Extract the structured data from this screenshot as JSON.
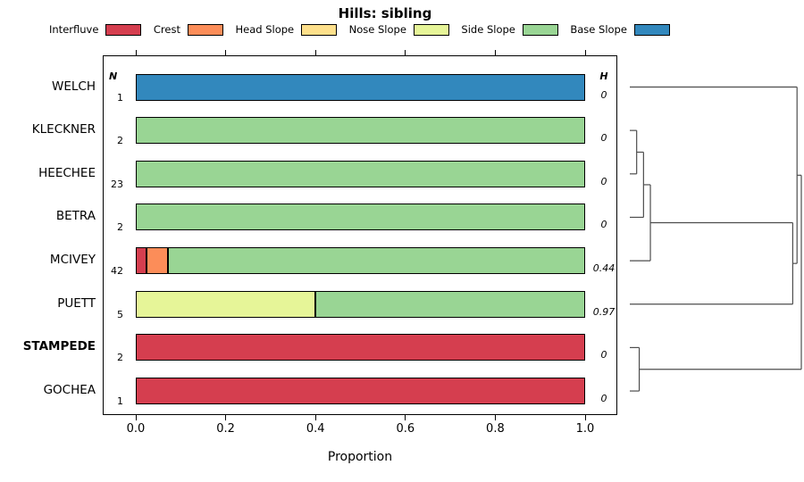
{
  "title": "Hills: sibling",
  "columns": {
    "n_header": "N",
    "h_header": "H"
  },
  "legend": [
    {
      "label": "Interfluve",
      "color": "#D53E4F"
    },
    {
      "label": "Crest",
      "color": "#FC8D59"
    },
    {
      "label": "Head Slope",
      "color": "#FEE08B"
    },
    {
      "label": "Nose Slope",
      "color": "#E6F598"
    },
    {
      "label": "Side Slope",
      "color": "#99D594"
    },
    {
      "label": "Base Slope",
      "color": "#3288BD"
    }
  ],
  "x_ticks": [
    "0.0",
    "0.2",
    "0.4",
    "0.6",
    "0.8",
    "1.0"
  ],
  "chart_data": {
    "type": "bar",
    "orientation": "horizontal",
    "stacked": true,
    "title": "Hills: sibling",
    "xlabel": "Proportion",
    "xlim": [
      0,
      1
    ],
    "legend_position": "top",
    "categories": [
      "WELCH",
      "KLECKNER",
      "HEECHEE",
      "BETRA",
      "MCIVEY",
      "PUETT",
      "STAMPEDE",
      "GOCHEA"
    ],
    "rows": [
      {
        "label": "WELCH",
        "n": "1",
        "h": "0",
        "bold": false,
        "segments": [
          {
            "class": "Base Slope",
            "value": 1.0
          }
        ]
      },
      {
        "label": "KLECKNER",
        "n": "2",
        "h": "0",
        "bold": false,
        "segments": [
          {
            "class": "Side Slope",
            "value": 1.0
          }
        ]
      },
      {
        "label": "HEECHEE",
        "n": "23",
        "h": "0",
        "bold": false,
        "segments": [
          {
            "class": "Side Slope",
            "value": 1.0
          }
        ]
      },
      {
        "label": "BETRA",
        "n": "2",
        "h": "0",
        "bold": false,
        "segments": [
          {
            "class": "Side Slope",
            "value": 1.0
          }
        ]
      },
      {
        "label": "MCIVEY",
        "n": "42",
        "h": "0.44",
        "bold": false,
        "segments": [
          {
            "class": "Interfluve",
            "value": 0.024
          },
          {
            "class": "Crest",
            "value": 0.048
          },
          {
            "class": "Side Slope",
            "value": 0.928
          }
        ]
      },
      {
        "label": "PUETT",
        "n": "5",
        "h": "0.97",
        "bold": false,
        "segments": [
          {
            "class": "Nose Slope",
            "value": 0.4
          },
          {
            "class": "Side Slope",
            "value": 0.6
          }
        ]
      },
      {
        "label": "STAMPEDE",
        "n": "2",
        "h": "0",
        "bold": true,
        "segments": [
          {
            "class": "Interfluve",
            "value": 1.0
          }
        ]
      },
      {
        "label": "GOCHEA",
        "n": "1",
        "h": "0",
        "bold": false,
        "segments": [
          {
            "class": "Interfluve",
            "value": 1.0
          }
        ]
      }
    ]
  },
  "dendrogram": {
    "height_scale": "0 = leaf, 1 = root",
    "merges": [
      {
        "id": "A",
        "children": [
          "KLECKNER",
          "HEECHEE"
        ],
        "height": 0.04
      },
      {
        "id": "B",
        "children": [
          "A",
          "BETRA"
        ],
        "height": 0.08
      },
      {
        "id": "C",
        "children": [
          "B",
          "MCIVEY"
        ],
        "height": 0.12
      },
      {
        "id": "F",
        "children": [
          "STAMPEDE",
          "GOCHEA"
        ],
        "height": 0.055
      },
      {
        "id": "D",
        "children": [
          "C",
          "PUETT"
        ],
        "height": 0.95
      },
      {
        "id": "E",
        "children": [
          "WELCH",
          "D"
        ],
        "height": 0.975
      },
      {
        "id": "root",
        "children": [
          "E",
          "F"
        ],
        "height": 1.0
      }
    ]
  }
}
